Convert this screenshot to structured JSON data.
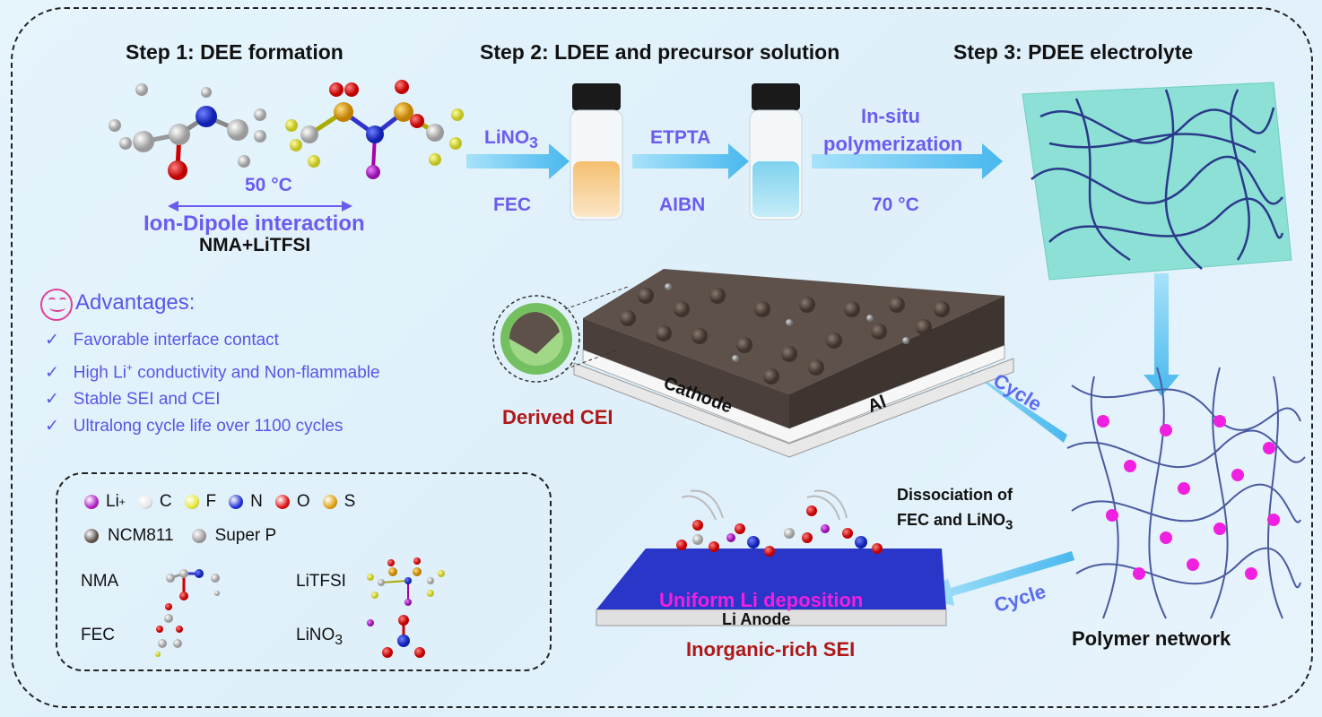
{
  "steps": {
    "step1": "Step 1: DEE formation",
    "step2": "Step 2: LDEE and precursor solution",
    "step3": "Step 3: PDEE electrolyte"
  },
  "step1_labels": {
    "temperature": "50 °C",
    "interaction": "Ion-Dipole interaction",
    "components": "NMA+LiTFSI"
  },
  "step2_labels": {
    "additive1": "LiNO",
    "additive1_sub": "3",
    "additive2": "FEC",
    "monomer": "ETPTA",
    "initiator": "AIBN"
  },
  "step3_labels": {
    "process_line1": "In-situ",
    "process_line2": "polymerization",
    "temperature": "70 °C"
  },
  "advantages": {
    "title": "Advantages:",
    "items": [
      {
        "pre": "Favorable interface contact",
        "sup": "",
        "post": ""
      },
      {
        "pre": "High Li",
        "sup": "+",
        "post": " conductivity and Non-flammable"
      },
      {
        "pre": "Stable SEI and CEI",
        "sup": "",
        "post": ""
      },
      {
        "pre": "Ultralong cycle life over 1100 cycles",
        "sup": "",
        "post": ""
      }
    ]
  },
  "legend": {
    "atoms": [
      {
        "label": "Li",
        "sup": "+",
        "color": "#b020c8"
      },
      {
        "label": "C",
        "sup": "",
        "color": "#e8e8e8"
      },
      {
        "label": "F",
        "sup": "",
        "color": "#e8e838"
      },
      {
        "label": "N",
        "sup": "",
        "color": "#2030d8"
      },
      {
        "label": "O",
        "sup": "",
        "color": "#e01010"
      },
      {
        "label": "S",
        "sup": "",
        "color": "#e0a010"
      }
    ],
    "materials": [
      {
        "label": "NCM811",
        "color": "#5e514a"
      },
      {
        "label": "Super P",
        "color": "#9a9a9a"
      }
    ],
    "molecules": {
      "nma": "NMA",
      "litfsi": "LiTFSI",
      "fec": "FEC",
      "lino3": "LiNO",
      "lino3_sub": "3"
    }
  },
  "cathode": {
    "cei_label": "Derived CEI",
    "cathode_label": "Cathode",
    "collector_label": "Al"
  },
  "anode": {
    "deposition_label": "Uniform Li deposition",
    "anode_label": "Li Anode",
    "sei_label": "Inorganic-rich SEI"
  },
  "cycle": {
    "upper": "Cycle",
    "lower": "Cycle"
  },
  "dissociation": {
    "line1": "Dissociation of",
    "line2": "FEC and LiNO",
    "line2_sub": "3"
  },
  "polymer_network_label": "Polymer network",
  "colors": {
    "accent_violet": "#6b5cf0",
    "arrow_blue": "#62c8f2",
    "dark_red": "#b01818",
    "magenta": "#f020e0"
  }
}
